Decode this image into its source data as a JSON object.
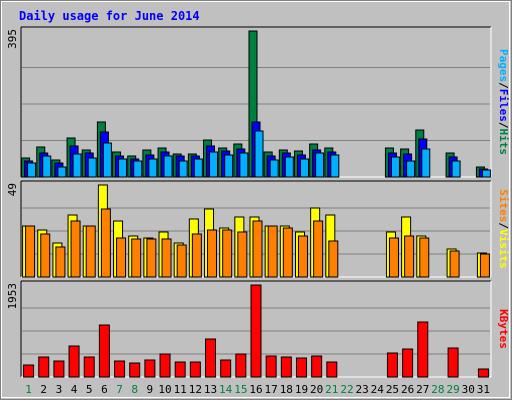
{
  "chart_data": {
    "type": "bar",
    "title": "Daily usage for June 2014",
    "days": [
      "1",
      "2",
      "3",
      "4",
      "5",
      "6",
      "7",
      "8",
      "9",
      "10",
      "11",
      "12",
      "13",
      "14",
      "15",
      "16",
      "17",
      "18",
      "19",
      "20",
      "21",
      "22",
      "23",
      "24",
      "25",
      "26",
      "27",
      "28",
      "29",
      "30",
      "31"
    ],
    "weekend_days": [
      "1",
      "7",
      "8",
      "14",
      "15",
      "21",
      "22",
      "28",
      "29"
    ],
    "panels": [
      {
        "id": "hits",
        "max_label": "395",
        "ymax": 395,
        "grid": true,
        "series": [
          {
            "name": "Hits",
            "color": "#008040",
            "values": [
              52,
              80,
              46,
              105,
              74,
              148,
              67,
              57,
              72,
              78,
              63,
              63,
              100,
              78,
              89,
              395,
              67,
              74,
              69,
              89,
              78,
              null,
              null,
              null,
              78,
              77,
              126,
              null,
              64,
              null,
              26
            ]
          },
          {
            "name": "Files",
            "color": "#0000ff",
            "values": [
              44,
              66,
              38,
              83,
              65,
              122,
              58,
              50,
              60,
              67,
              56,
              58,
              85,
              69,
              77,
              150,
              58,
              65,
              59,
              74,
              67,
              null,
              null,
              null,
              65,
              62,
              103,
              null,
              53,
              null,
              22
            ]
          },
          {
            "name": "Pages",
            "color": "#00b0ff",
            "values": [
              38,
              56,
              28,
              62,
              52,
              92,
              49,
              44,
              50,
              56,
              44,
              50,
              67,
              60,
              65,
              125,
              47,
              55,
              50,
              65,
              60,
              null,
              null,
              null,
              55,
              44,
              75,
              null,
              43,
              null,
              19
            ]
          }
        ]
      },
      {
        "id": "visits",
        "max_label": "49",
        "ymax": 49,
        "grid": true,
        "series": [
          {
            "name": "Visits",
            "color": "#ffff00",
            "values": [
              27,
              25,
              18,
              33,
              27,
              49,
              30,
              22,
              21,
              24,
              18,
              31,
              36,
              26,
              32,
              32,
              27,
              27,
              24,
              37,
              33,
              null,
              null,
              null,
              24,
              32,
              22,
              null,
              15,
              null,
              13
            ]
          },
          {
            "name": "Sites",
            "color": "#ff8000",
            "values": [
              27,
              23,
              16,
              30,
              27,
              36,
              21,
              20,
              20,
              20,
              17,
              23,
              25,
              25,
              24,
              30,
              27,
              26,
              22,
              30,
              19,
              null,
              null,
              null,
              21,
              22,
              21,
              null,
              14,
              null,
              12
            ]
          }
        ]
      },
      {
        "id": "kbytes",
        "max_label": "1953",
        "ymax": 1953,
        "grid": true,
        "series": [
          {
            "name": "KBytes",
            "color": "#ff0000",
            "values": [
              250,
              430,
              340,
              660,
              430,
              1110,
              340,
              290,
              370,
              480,
              320,
              320,
              800,
              370,
              480,
              1953,
              440,
              420,
              410,
              450,
              320,
              null,
              null,
              null,
              520,
              590,
              1160,
              null,
              610,
              null,
              170
            ]
          }
        ]
      }
    ],
    "right_labels": {
      "top": [
        {
          "text": "Pages",
          "color": "#00b0ff"
        },
        {
          "text": "/",
          "color": "#000000"
        },
        {
          "text": "Files",
          "color": "#0000ff"
        },
        {
          "text": "/",
          "color": "#000000"
        },
        {
          "text": "Hits",
          "color": "#008040"
        }
      ],
      "middle": [
        {
          "text": "Sites",
          "color": "#ff8000"
        },
        {
          "text": "/",
          "color": "#000000"
        },
        {
          "text": "Visits",
          "color": "#ffff00"
        }
      ],
      "bottom": [
        {
          "text": "KBytes",
          "color": "#ff0000"
        }
      ]
    },
    "colors": {
      "title": "#0000ff",
      "plot_bg": "#c0c0c0",
      "frame_bg": "#c0c0c0",
      "weekday_label": "#000000",
      "weekend_label": "#008040"
    }
  }
}
